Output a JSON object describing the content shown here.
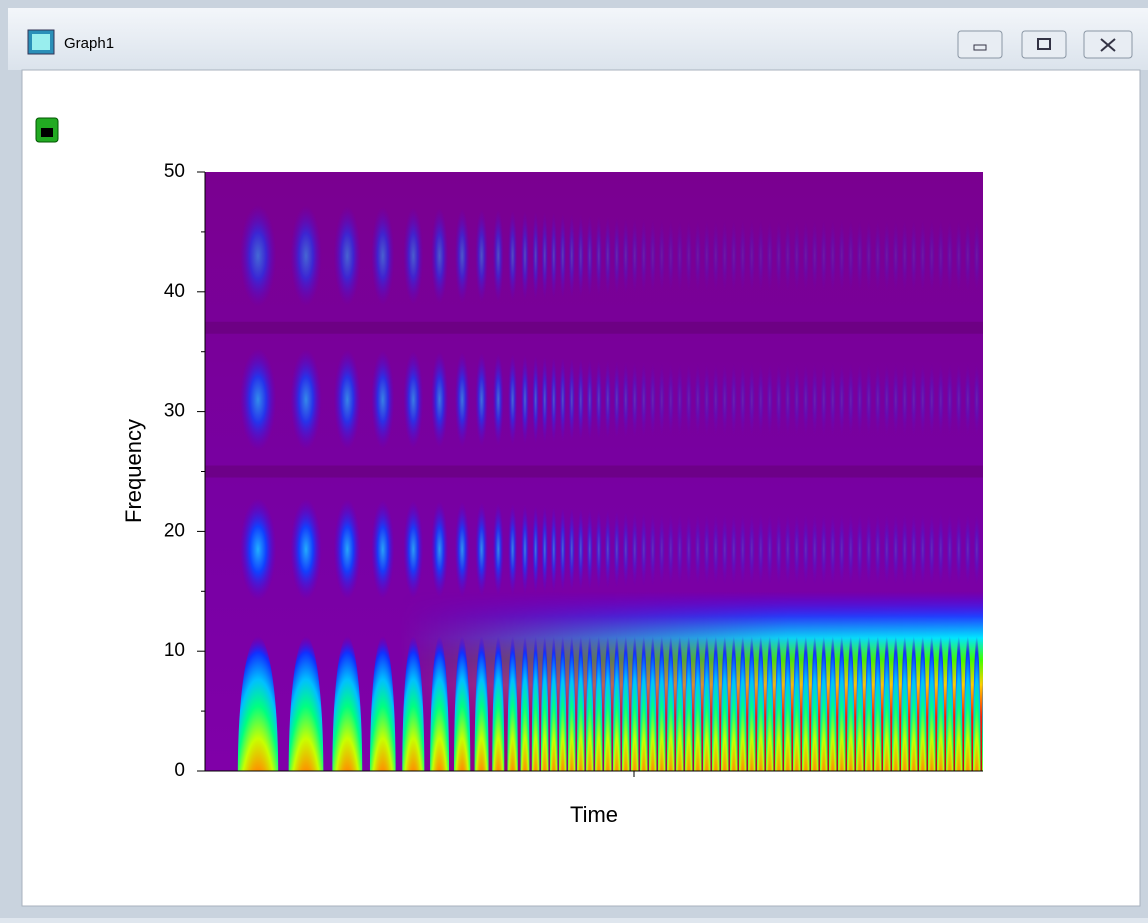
{
  "window": {
    "title": "Graph1"
  },
  "chart_data": {
    "type": "heatmap",
    "x_label": "Time",
    "y_label": "Frequency",
    "ylim": [
      0,
      50
    ],
    "yticks": [
      0,
      10,
      20,
      30,
      40,
      50
    ]
  }
}
